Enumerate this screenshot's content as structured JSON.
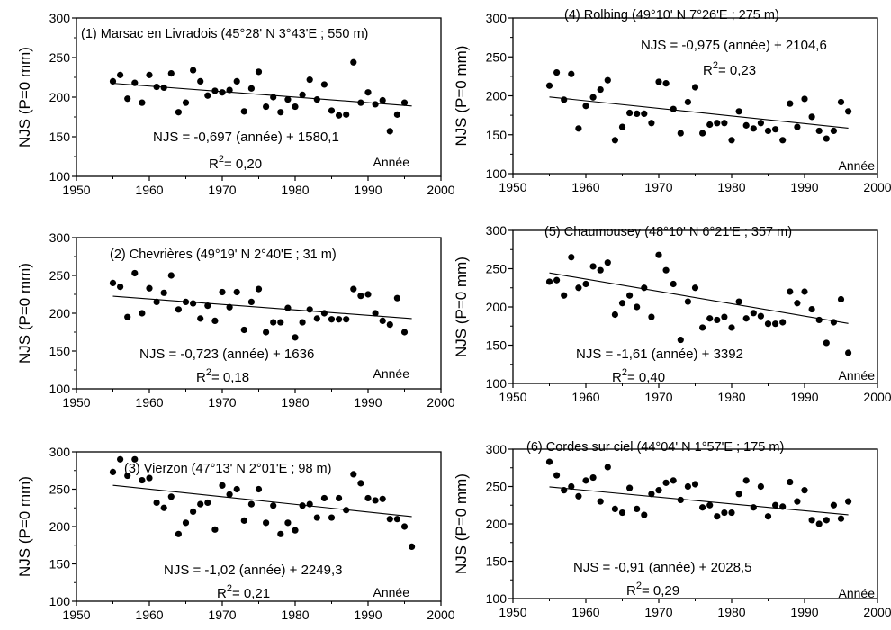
{
  "chart_data": [
    {
      "type": "scatter",
      "title": "(1) Marsac en Livradois  (45°28' N 3°43'E ; 550  m)",
      "ylabel": "NJS (P=0 mm)",
      "xlabel": "Année",
      "equation": "NJS = -0,697 (année) + 1580,1",
      "r2": "= 0,20",
      "xlim": [
        1950,
        2000
      ],
      "ylim": [
        100,
        300
      ],
      "xticks": [
        1950,
        1960,
        1970,
        1980,
        1990,
        2000
      ],
      "yticks": [
        100,
        150,
        200,
        250,
        300
      ],
      "trend": {
        "slope": -0.697,
        "intercept": 1580.1,
        "x_range": [
          1955,
          1996
        ]
      },
      "points": [
        [
          1955,
          220
        ],
        [
          1956,
          228
        ],
        [
          1957,
          198
        ],
        [
          1958,
          218
        ],
        [
          1959,
          193
        ],
        [
          1960,
          228
        ],
        [
          1961,
          213
        ],
        [
          1962,
          212
        ],
        [
          1963,
          230
        ],
        [
          1964,
          181
        ],
        [
          1965,
          193
        ],
        [
          1966,
          234
        ],
        [
          1967,
          220
        ],
        [
          1968,
          202
        ],
        [
          1969,
          208
        ],
        [
          1970,
          206
        ],
        [
          1971,
          209
        ],
        [
          1972,
          220
        ],
        [
          1973,
          182
        ],
        [
          1974,
          211
        ],
        [
          1975,
          232
        ],
        [
          1976,
          188
        ],
        [
          1977,
          200
        ],
        [
          1978,
          181
        ],
        [
          1979,
          197
        ],
        [
          1980,
          188
        ],
        [
          1981,
          203
        ],
        [
          1982,
          222
        ],
        [
          1983,
          197
        ],
        [
          1984,
          216
        ],
        [
          1985,
          183
        ],
        [
          1986,
          177
        ],
        [
          1987,
          178
        ],
        [
          1988,
          244
        ],
        [
          1989,
          193
        ],
        [
          1990,
          206
        ],
        [
          1991,
          191
        ],
        [
          1992,
          196
        ],
        [
          1993,
          157
        ],
        [
          1994,
          178
        ],
        [
          1995,
          193
        ]
      ]
    },
    {
      "type": "scatter",
      "title": "(2) Chevrières (49°19' N 2°40'E ; 31 m)",
      "ylabel": "NJS (P=0 mm)",
      "xlabel": "Année",
      "equation": "NJS = -0,723 (année)  + 1636",
      "r2": "= 0,18",
      "xlim": [
        1950,
        2000
      ],
      "ylim": [
        100,
        300
      ],
      "xticks": [
        1950,
        1960,
        1970,
        1980,
        1990,
        2000
      ],
      "yticks": [
        100,
        150,
        200,
        250,
        300
      ],
      "trend": {
        "slope": -0.723,
        "intercept": 1636,
        "x_range": [
          1955,
          1996
        ]
      },
      "points": [
        [
          1955,
          240
        ],
        [
          1956,
          235
        ],
        [
          1957,
          195
        ],
        [
          1958,
          253
        ],
        [
          1959,
          200
        ],
        [
          1960,
          233
        ],
        [
          1961,
          215
        ],
        [
          1962,
          227
        ],
        [
          1963,
          250
        ],
        [
          1964,
          205
        ],
        [
          1965,
          215
        ],
        [
          1966,
          213
        ],
        [
          1967,
          193
        ],
        [
          1968,
          210
        ],
        [
          1969,
          190
        ],
        [
          1970,
          228
        ],
        [
          1971,
          208
        ],
        [
          1972,
          228
        ],
        [
          1973,
          178
        ],
        [
          1974,
          215
        ],
        [
          1975,
          232
        ],
        [
          1976,
          175
        ],
        [
          1977,
          188
        ],
        [
          1978,
          188
        ],
        [
          1979,
          207
        ],
        [
          1980,
          168
        ],
        [
          1981,
          188
        ],
        [
          1982,
          205
        ],
        [
          1983,
          193
        ],
        [
          1984,
          200
        ],
        [
          1985,
          192
        ],
        [
          1986,
          192
        ],
        [
          1987,
          192
        ],
        [
          1988,
          232
        ],
        [
          1989,
          223
        ],
        [
          1990,
          225
        ],
        [
          1991,
          200
        ],
        [
          1992,
          190
        ],
        [
          1993,
          185
        ],
        [
          1994,
          220
        ],
        [
          1995,
          175
        ]
      ]
    },
    {
      "type": "scatter",
      "title": "(3) Vierzon (47°13' N 2°01'E ; 98  m)",
      "ylabel": "NJS (P=0 mm)",
      "xlabel": "Année",
      "equation": "NJS = -1,02 (année)  + 2249,3",
      "r2": "= 0,21",
      "xlim": [
        1950,
        2000
      ],
      "ylim": [
        100,
        300
      ],
      "xticks": [
        1950,
        1960,
        1970,
        1980,
        1990,
        2000
      ],
      "yticks": [
        100,
        150,
        200,
        250,
        300
      ],
      "trend": {
        "slope": -1.02,
        "intercept": 2249.3,
        "x_range": [
          1955,
          1996
        ]
      },
      "points": [
        [
          1955,
          273
        ],
        [
          1956,
          290
        ],
        [
          1957,
          268
        ],
        [
          1958,
          290
        ],
        [
          1959,
          262
        ],
        [
          1960,
          265
        ],
        [
          1961,
          232
        ],
        [
          1962,
          225
        ],
        [
          1963,
          240
        ],
        [
          1964,
          190
        ],
        [
          1965,
          205
        ],
        [
          1966,
          220
        ],
        [
          1967,
          230
        ],
        [
          1968,
          232
        ],
        [
          1969,
          196
        ],
        [
          1970,
          255
        ],
        [
          1971,
          243
        ],
        [
          1972,
          250
        ],
        [
          1973,
          208
        ],
        [
          1974,
          230
        ],
        [
          1975,
          250
        ],
        [
          1976,
          205
        ],
        [
          1977,
          228
        ],
        [
          1978,
          190
        ],
        [
          1979,
          205
        ],
        [
          1980,
          195
        ],
        [
          1981,
          228
        ],
        [
          1982,
          230
        ],
        [
          1983,
          212
        ],
        [
          1984,
          238
        ],
        [
          1985,
          212
        ],
        [
          1986,
          238
        ],
        [
          1987,
          222
        ],
        [
          1988,
          270
        ],
        [
          1989,
          258
        ],
        [
          1990,
          238
        ],
        [
          1991,
          235
        ],
        [
          1992,
          237
        ],
        [
          1993,
          210
        ],
        [
          1994,
          210
        ],
        [
          1995,
          200
        ],
        [
          1996,
          173
        ]
      ]
    },
    {
      "type": "scatter",
      "title": "(4) Rolbing (49°10' N 7°26'E ; 275  m)",
      "ylabel": "NJS (P=0 mm)",
      "xlabel": "Année",
      "equation": "NJS  = -0,975 (année)  + 2104,6",
      "r2": "= 0,23",
      "xlim": [
        1950,
        2000
      ],
      "ylim": [
        100,
        300
      ],
      "xticks": [
        1950,
        1960,
        1970,
        1980,
        1990,
        2000
      ],
      "yticks": [
        100,
        150,
        200,
        250,
        300
      ],
      "trend": {
        "slope": -0.975,
        "intercept": 2104.6,
        "x_range": [
          1955,
          1996
        ]
      },
      "points": [
        [
          1955,
          213
        ],
        [
          1956,
          230
        ],
        [
          1957,
          195
        ],
        [
          1958,
          228
        ],
        [
          1959,
          158
        ],
        [
          1960,
          187
        ],
        [
          1961,
          198
        ],
        [
          1962,
          208
        ],
        [
          1963,
          220
        ],
        [
          1964,
          143
        ],
        [
          1965,
          160
        ],
        [
          1966,
          178
        ],
        [
          1967,
          177
        ],
        [
          1968,
          177
        ],
        [
          1969,
          165
        ],
        [
          1970,
          218
        ],
        [
          1971,
          216
        ],
        [
          1972,
          183
        ],
        [
          1973,
          152
        ],
        [
          1974,
          192
        ],
        [
          1975,
          211
        ],
        [
          1976,
          152
        ],
        [
          1977,
          163
        ],
        [
          1978,
          165
        ],
        [
          1979,
          165
        ],
        [
          1980,
          143
        ],
        [
          1981,
          180
        ],
        [
          1982,
          162
        ],
        [
          1983,
          158
        ],
        [
          1984,
          165
        ],
        [
          1985,
          155
        ],
        [
          1986,
          157
        ],
        [
          1987,
          143
        ],
        [
          1988,
          190
        ],
        [
          1989,
          160
        ],
        [
          1990,
          196
        ],
        [
          1991,
          173
        ],
        [
          1992,
          155
        ],
        [
          1993,
          145
        ],
        [
          1994,
          155
        ],
        [
          1995,
          192
        ],
        [
          1996,
          180
        ]
      ]
    },
    {
      "type": "scatter",
      "title": "(5) Chaumousey (48°10' N 6°21'E ; 357 m)",
      "ylabel": "NJS (P=0 mm)",
      "xlabel": "Année",
      "equation": "NJS = -1,61 (année) + 3392",
      "r2": "= 0,40",
      "xlim": [
        1950,
        2000
      ],
      "ylim": [
        100,
        300
      ],
      "xticks": [
        1950,
        1960,
        1970,
        1980,
        1990,
        2000
      ],
      "yticks": [
        100,
        150,
        200,
        250,
        300
      ],
      "trend": {
        "slope": -1.61,
        "intercept": 3392,
        "x_range": [
          1955,
          1996
        ]
      },
      "points": [
        [
          1955,
          233
        ],
        [
          1956,
          235
        ],
        [
          1957,
          215
        ],
        [
          1958,
          265
        ],
        [
          1959,
          225
        ],
        [
          1960,
          230
        ],
        [
          1961,
          253
        ],
        [
          1962,
          248
        ],
        [
          1963,
          258
        ],
        [
          1964,
          190
        ],
        [
          1965,
          205
        ],
        [
          1966,
          215
        ],
        [
          1967,
          200
        ],
        [
          1968,
          225
        ],
        [
          1969,
          187
        ],
        [
          1970,
          268
        ],
        [
          1971,
          248
        ],
        [
          1972,
          230
        ],
        [
          1973,
          157
        ],
        [
          1974,
          207
        ],
        [
          1975,
          225
        ],
        [
          1976,
          173
        ],
        [
          1977,
          185
        ],
        [
          1978,
          183
        ],
        [
          1979,
          187
        ],
        [
          1980,
          173
        ],
        [
          1981,
          207
        ],
        [
          1982,
          185
        ],
        [
          1983,
          192
        ],
        [
          1984,
          188
        ],
        [
          1985,
          178
        ],
        [
          1986,
          178
        ],
        [
          1987,
          180
        ],
        [
          1988,
          220
        ],
        [
          1989,
          205
        ],
        [
          1990,
          220
        ],
        [
          1991,
          197
        ],
        [
          1992,
          183
        ],
        [
          1993,
          153
        ],
        [
          1994,
          180
        ],
        [
          1995,
          210
        ],
        [
          1996,
          140
        ]
      ]
    },
    {
      "type": "scatter",
      "title": "(6) Cordes sur ciel (44°04' N 1°57'E ; 175 m)",
      "ylabel": "NJS (P=0 mm)",
      "xlabel": "Année",
      "equation": "NJS  = -0,91 (année) + 2028,5",
      "r2": "= 0,29",
      "xlim": [
        1950,
        2000
      ],
      "ylim": [
        100,
        300
      ],
      "xticks": [
        1950,
        1960,
        1970,
        1980,
        1990,
        2000
      ],
      "yticks": [
        100,
        150,
        200,
        250,
        300
      ],
      "trend": {
        "slope": -0.91,
        "intercept": 2028.5,
        "x_range": [
          1955,
          1996
        ]
      },
      "points": [
        [
          1955,
          283
        ],
        [
          1956,
          265
        ],
        [
          1957,
          245
        ],
        [
          1958,
          250
        ],
        [
          1959,
          237
        ],
        [
          1960,
          258
        ],
        [
          1961,
          262
        ],
        [
          1962,
          230
        ],
        [
          1963,
          276
        ],
        [
          1964,
          220
        ],
        [
          1965,
          215
        ],
        [
          1966,
          248
        ],
        [
          1967,
          220
        ],
        [
          1968,
          212
        ],
        [
          1969,
          240
        ],
        [
          1970,
          245
        ],
        [
          1971,
          255
        ],
        [
          1972,
          258
        ],
        [
          1973,
          232
        ],
        [
          1974,
          250
        ],
        [
          1975,
          253
        ],
        [
          1976,
          222
        ],
        [
          1977,
          225
        ],
        [
          1978,
          210
        ],
        [
          1979,
          215
        ],
        [
          1980,
          215
        ],
        [
          1981,
          240
        ],
        [
          1982,
          258
        ],
        [
          1983,
          222
        ],
        [
          1984,
          250
        ],
        [
          1985,
          210
        ],
        [
          1986,
          225
        ],
        [
          1987,
          223
        ],
        [
          1988,
          256
        ],
        [
          1989,
          230
        ],
        [
          1990,
          245
        ],
        [
          1991,
          205
        ],
        [
          1992,
          200
        ],
        [
          1993,
          205
        ],
        [
          1994,
          225
        ],
        [
          1995,
          207
        ],
        [
          1996,
          230
        ]
      ]
    }
  ]
}
